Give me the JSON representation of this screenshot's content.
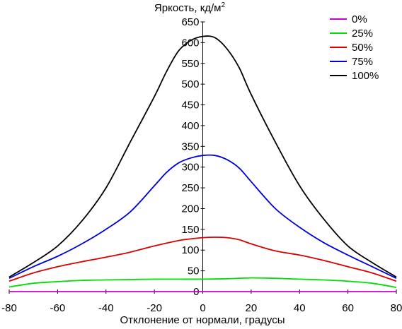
{
  "chart_data": {
    "type": "line",
    "title": "",
    "xlabel": "Отклонение от нормали, градусы",
    "ylabel": "Яркость, кд/м",
    "ylabel_superscript": "2",
    "xlim": [
      -80,
      80
    ],
    "ylim": [
      0,
      650
    ],
    "x_ticks": [
      -80,
      -60,
      -40,
      -20,
      0,
      20,
      40,
      60,
      80
    ],
    "y_ticks": [
      0,
      50,
      100,
      150,
      200,
      250,
      300,
      350,
      400,
      450,
      500,
      550,
      600,
      650
    ],
    "grid": false,
    "legend": "top-right",
    "series": [
      {
        "name": "0%",
        "color": "#cc00cc",
        "x": [
          -80,
          80
        ],
        "y": [
          0,
          0
        ]
      },
      {
        "name": "25%",
        "color": "#00dd00",
        "x": [
          -80,
          -70,
          -60,
          -50,
          -40,
          -30,
          -20,
          -10,
          0,
          10,
          20,
          30,
          40,
          50,
          60,
          70,
          80
        ],
        "y": [
          11,
          20,
          24,
          27,
          28,
          29,
          30,
          30,
          30,
          31,
          33,
          32,
          30,
          28,
          25,
          20,
          10
        ]
      },
      {
        "name": "50%",
        "color": "#dd0000",
        "x": [
          -80,
          -70,
          -60,
          -50,
          -40,
          -30,
          -20,
          -10,
          -5,
          0,
          5,
          10,
          15,
          20,
          30,
          40,
          50,
          60,
          70,
          80
        ],
        "y": [
          25,
          45,
          60,
          72,
          83,
          95,
          110,
          123,
          127,
          130,
          131,
          130,
          125,
          115,
          98,
          88,
          75,
          60,
          45,
          25
        ]
      },
      {
        "name": "75%",
        "color": "#0000dd",
        "x": [
          -80,
          -70,
          -60,
          -50,
          -40,
          -30,
          -20,
          -15,
          -10,
          -5,
          0,
          5,
          10,
          15,
          20,
          30,
          40,
          50,
          60,
          70,
          80
        ],
        "y": [
          32,
          60,
          85,
          115,
          150,
          192,
          255,
          287,
          310,
          322,
          328,
          328,
          318,
          298,
          265,
          200,
          155,
          118,
          88,
          60,
          32
        ]
      },
      {
        "name": "100%",
        "color": "#000000",
        "x": [
          -80,
          -70,
          -60,
          -50,
          -40,
          -30,
          -20,
          -15,
          -10,
          -5,
          0,
          5,
          10,
          15,
          20,
          30,
          40,
          50,
          60,
          70,
          80
        ],
        "y": [
          35,
          70,
          110,
          170,
          250,
          360,
          470,
          530,
          580,
          605,
          615,
          612,
          585,
          540,
          475,
          360,
          255,
          175,
          110,
          70,
          35
        ]
      }
    ]
  }
}
